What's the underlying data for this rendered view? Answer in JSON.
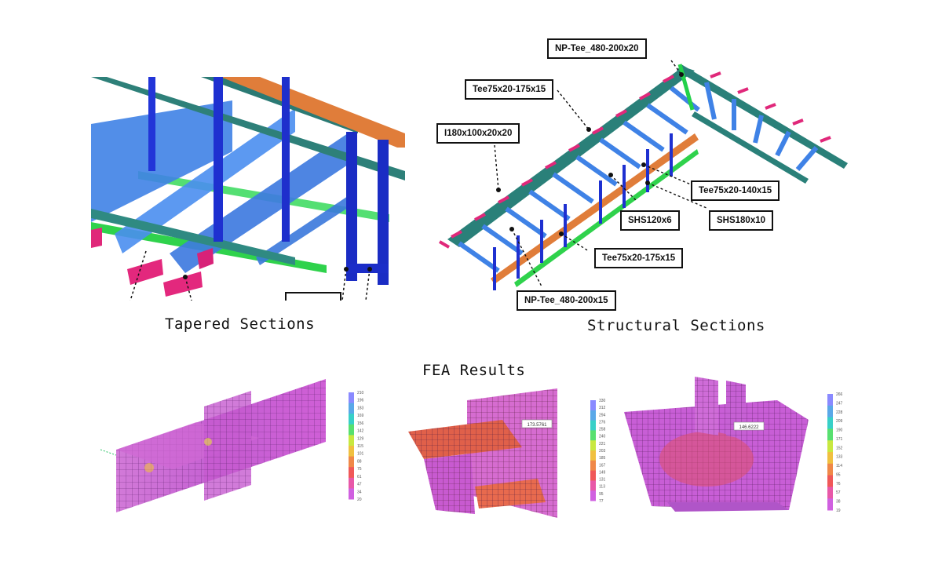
{
  "captions": {
    "tapered": "Tapered Sections",
    "structural": "Structural Sections",
    "fea": "FEA Results"
  },
  "callouts": [
    "NP-Tee_480-200x20",
    "Tee75x20-175x15",
    "I180x100x20x20",
    "Tee75x20-140x15",
    "SHS120x6",
    "SHS180x10",
    "Tee75x20-175x15",
    "NP-Tee_480-200x15"
  ],
  "fea": {
    "legend_colors": [
      "#8a8aff",
      "#5aa8e8",
      "#38d0c8",
      "#58e070",
      "#c8e840",
      "#f0c040",
      "#f08848",
      "#f05858",
      "#e858a8",
      "#d060e0"
    ],
    "legend1_ticks": [
      "210",
      "196",
      "183",
      "169",
      "156",
      "142",
      "129",
      "115",
      "101",
      "88",
      "75",
      "61",
      "47",
      "34",
      "20"
    ],
    "legend2_ticks": [
      "330",
      "312",
      "294",
      "276",
      "258",
      "240",
      "221",
      "203",
      "185",
      "167",
      "149",
      "131",
      "113",
      "95",
      "77"
    ],
    "legend3_ticks": [
      "266",
      "247",
      "228",
      "209",
      "190",
      "171",
      "152",
      "133",
      "114",
      "95",
      "76",
      "57",
      "38",
      "19"
    ],
    "tag2": "173.5761",
    "tag3": "146.6222"
  },
  "colors": {
    "beam_blue": "#3f7be0",
    "column_blue": "#1e2fd0",
    "teal": "#2e7f7a",
    "orange": "#e07d3a",
    "green": "#22d14a",
    "magenta": "#e0287a"
  }
}
